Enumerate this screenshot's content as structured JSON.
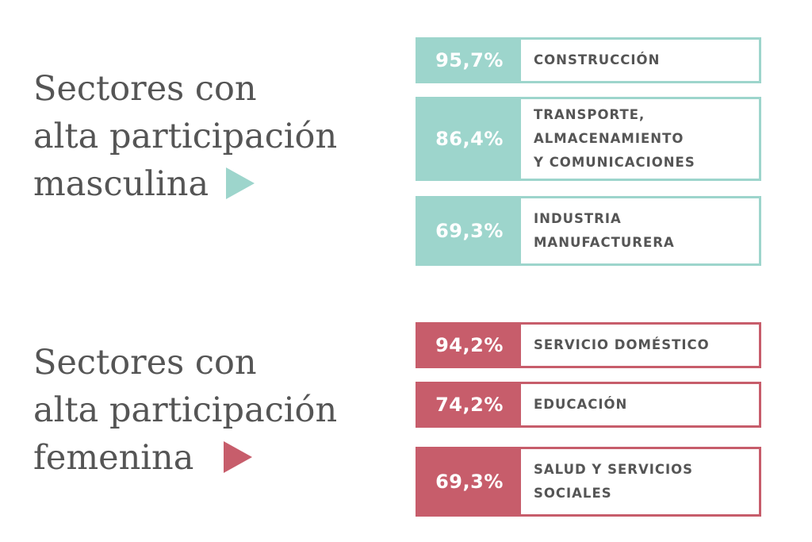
{
  "colors": {
    "male": "#9dd5cc",
    "female": "#c75d6b",
    "heading_text": "#555555",
    "label_text": "#555555"
  },
  "chart_data": [
    {
      "type": "table",
      "group": "masculina",
      "title_lines": [
        "Sectores con",
        "alta participación",
        "masculina"
      ],
      "marker_icon": "triangle-right-icon",
      "color": "#9dd5cc",
      "rows": [
        {
          "value": 95.7,
          "display": "95,7%",
          "label_lines": [
            "CONSTRUCCIÓN"
          ]
        },
        {
          "value": 86.4,
          "display": "86,4%",
          "label_lines": [
            "TRANSPORTE,",
            "ALMACENAMIENTO",
            "Y COMUNICACIONES"
          ]
        },
        {
          "value": 69.3,
          "display": "69,3%",
          "label_lines": [
            "INDUSTRIA",
            "MANUFACTURERA"
          ]
        }
      ]
    },
    {
      "type": "table",
      "group": "femenina",
      "title_lines": [
        "Sectores con",
        "alta participación",
        "femenina"
      ],
      "marker_icon": "triangle-right-icon",
      "color": "#c75d6b",
      "rows": [
        {
          "value": 94.2,
          "display": "94,2%",
          "label_lines": [
            "SERVICIO DOMÉSTICO"
          ]
        },
        {
          "value": 74.2,
          "display": "74,2%",
          "label_lines": [
            "EDUCACIÓN"
          ]
        },
        {
          "value": 69.3,
          "display": "69,3%",
          "label_lines": [
            "SALUD Y SERVICIOS",
            "SOCIALES"
          ]
        }
      ]
    }
  ]
}
